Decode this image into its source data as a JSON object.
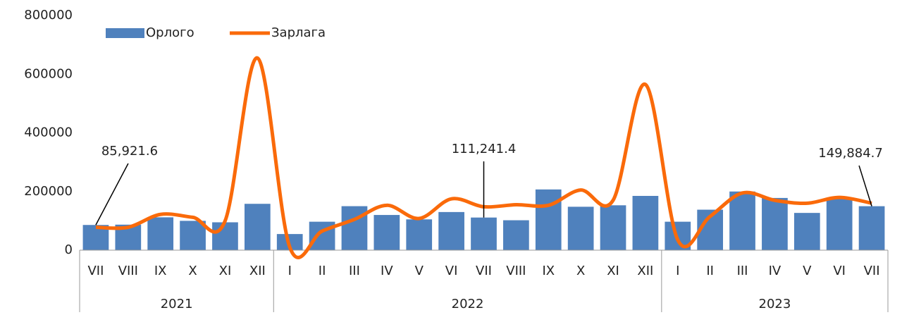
{
  "chart_data": {
    "type": "combo",
    "categories": [
      "VII",
      "VIII",
      "IX",
      "X",
      "XI",
      "XII",
      "I",
      "II",
      "III",
      "IV",
      "V",
      "VI",
      "VII",
      "VIII",
      "IX",
      "X",
      "XI",
      "XII",
      "I",
      "II",
      "III",
      "IV",
      "V",
      "VI",
      "VII"
    ],
    "groups": [
      {
        "name": "2021",
        "size": 6
      },
      {
        "name": "2022",
        "size": 12
      },
      {
        "name": "2023",
        "size": 7
      }
    ],
    "series": [
      {
        "name": "Орлого",
        "type": "bar",
        "color": "#4f81bd",
        "values": [
          85921.6,
          87000,
          112000,
          100000,
          95000,
          158000,
          55000,
          97000,
          150000,
          120000,
          105000,
          130000,
          111241.4,
          102000,
          207000,
          148000,
          153000,
          185000,
          97000,
          138000,
          200000,
          178000,
          127000,
          178000,
          149884.7
        ],
        "value_labels": [
          "85,921.6",
          null,
          null,
          null,
          null,
          null,
          null,
          null,
          null,
          null,
          null,
          null,
          "111,241.4",
          null,
          null,
          null,
          null,
          null,
          null,
          null,
          null,
          null,
          null,
          null,
          "149,884.7"
        ]
      },
      {
        "name": "Зарлага",
        "type": "line",
        "color": "#fa6a0a",
        "values": [
          78000,
          78000,
          122000,
          112000,
          100000,
          655000,
          10000,
          65000,
          105000,
          153000,
          108000,
          175000,
          148000,
          155000,
          153000,
          205000,
          170000,
          565000,
          35000,
          115000,
          195000,
          170000,
          160000,
          180000,
          160000
        ]
      }
    ],
    "ylim": [
      0,
      800000
    ],
    "yticks": [
      0,
      200000,
      400000,
      600000,
      800000
    ],
    "grid": false,
    "legend": "top-left"
  }
}
